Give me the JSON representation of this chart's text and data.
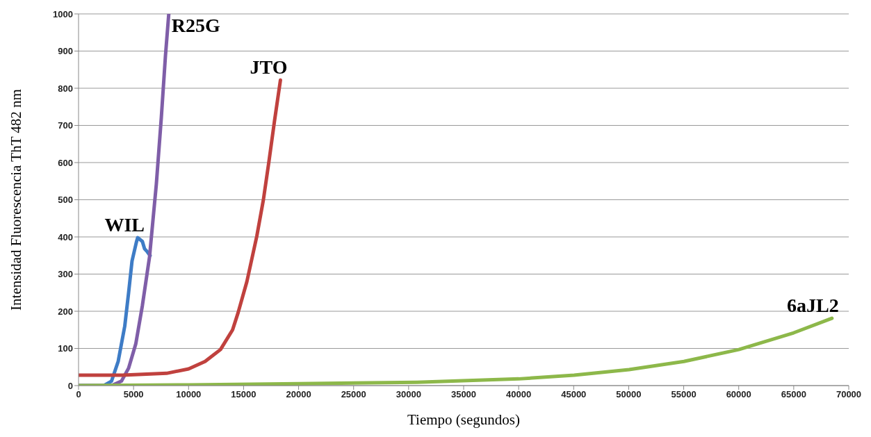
{
  "chart_data": {
    "type": "line",
    "xlabel": "Tiempo (segundos)",
    "ylabel": "Intensidad Fluorescencia ThT 482 nm",
    "xlim": [
      0,
      70000
    ],
    "xticks": [
      0,
      5000,
      10000,
      15000,
      20000,
      25000,
      30000,
      35000,
      40000,
      45000,
      50000,
      55000,
      60000,
      65000,
      70000
    ],
    "ylim": [
      0,
      1000
    ],
    "yticks": [
      0,
      100,
      200,
      300,
      400,
      500,
      600,
      700,
      800,
      900,
      1000
    ],
    "grid": "y",
    "legend": false,
    "series": [
      {
        "name": "WIL",
        "color": "#3e7cc6",
        "x": [
          0,
          2300,
          3000,
          3600,
          4200,
          4550,
          4860,
          5250,
          5370,
          5800,
          6000,
          6250,
          6500
        ],
        "values": [
          0,
          0,
          12,
          65,
          160,
          250,
          335,
          385,
          398,
          388,
          368,
          360,
          350
        ]
      },
      {
        "name": "R25G",
        "color": "#7f5ea8",
        "x": [
          0,
          3000,
          3900,
          4550,
          5200,
          5800,
          6450,
          7070,
          7520,
          7900,
          8200
        ],
        "values": [
          0,
          0,
          12,
          47,
          112,
          215,
          346,
          542,
          720,
          888,
          1000
        ]
      },
      {
        "name": "JTO",
        "color": "#c0413e",
        "x": [
          0,
          4000,
          8000,
          10000,
          11500,
          12900,
          14000,
          14500,
          15300,
          16200,
          16800,
          17300,
          17800,
          18350
        ],
        "values": [
          28,
          28,
          33,
          45,
          65,
          97,
          150,
          196,
          280,
          402,
          500,
          602,
          710,
          822
        ]
      },
      {
        "name": "6aJL2",
        "color": "#8db84a",
        "x": [
          0,
          10000,
          20000,
          30760,
          40000,
          45040,
          50030,
          55020,
          60010,
          65000,
          68470
        ],
        "values": [
          0,
          2,
          5,
          9,
          18,
          28,
          43,
          65,
          97,
          142,
          181
        ]
      }
    ]
  }
}
